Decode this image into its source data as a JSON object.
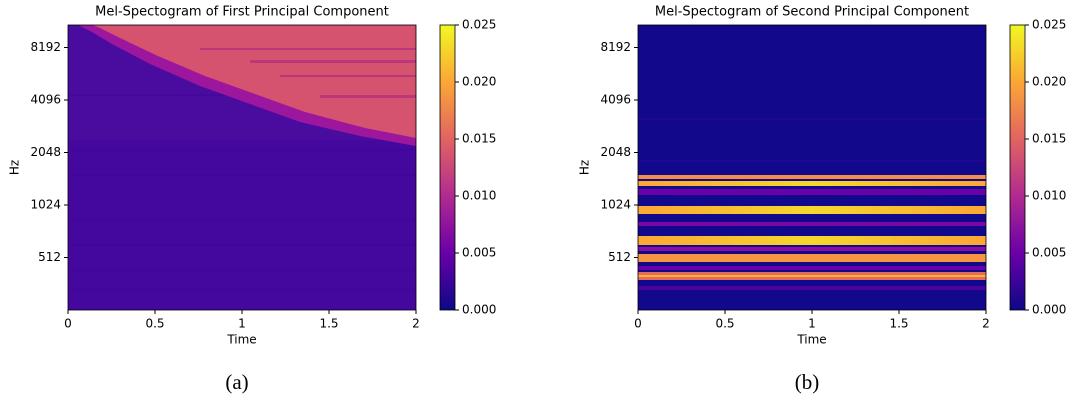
{
  "chart_data": [
    {
      "type": "heatmap",
      "title": "Mel-Spectogram of First Principal Component",
      "xlabel": "Time",
      "ylabel": "Hz",
      "xlim": [
        0,
        2
      ],
      "xticks": [
        0,
        0.5,
        1,
        1.5,
        2
      ],
      "ylim": [
        256,
        11025
      ],
      "yscale": "log",
      "yticks": [
        512,
        1024,
        2048,
        4096,
        8192
      ],
      "colorbar": {
        "lim": [
          0,
          0.025
        ],
        "ticks": [
          {
            "value": 0,
            "label": "0.000"
          },
          {
            "value": 0.005,
            "label": "0.005"
          },
          {
            "value": 0.01,
            "label": "0.010"
          },
          {
            "value": 0.015,
            "label": "0.015"
          },
          {
            "value": 0.02,
            "label": "0.020"
          },
          {
            "value": 0.025,
            "label": "0.025"
          }
        ],
        "colors": [
          "#0d0887",
          "#6a00a8",
          "#b12a90",
          "#e16462",
          "#fca636",
          "#f0f921"
        ]
      },
      "caption": "(a)"
    },
    {
      "type": "heatmap",
      "title": "Mel-Spectogram of Second Principal Component",
      "xlabel": "Time",
      "ylabel": "Hz",
      "xlim": [
        0,
        2
      ],
      "xticks": [
        0,
        0.5,
        1,
        1.5,
        2
      ],
      "ylim": [
        256,
        11025
      ],
      "yscale": "log",
      "yticks": [
        512,
        1024,
        2048,
        4096,
        8192
      ],
      "colorbar": {
        "lim": [
          0,
          0.025
        ],
        "ticks": [
          {
            "value": 0,
            "label": "0.000"
          },
          {
            "value": 0.005,
            "label": "0.005"
          },
          {
            "value": 0.01,
            "label": "0.010"
          },
          {
            "value": 0.015,
            "label": "0.015"
          },
          {
            "value": 0.02,
            "label": "0.020"
          },
          {
            "value": 0.025,
            "label": "0.025"
          }
        ],
        "colors": [
          "#0d0887",
          "#6a00a8",
          "#b12a90",
          "#e16462",
          "#fca636",
          "#f0f921"
        ]
      },
      "caption": "(b)"
    }
  ]
}
